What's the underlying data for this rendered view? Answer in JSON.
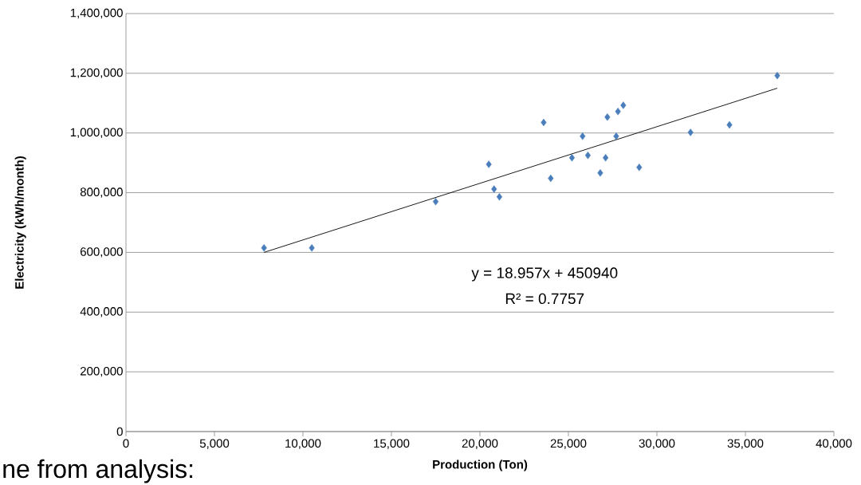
{
  "chart_data": {
    "type": "scatter",
    "xlabel": "Production (Ton)",
    "ylabel": "Electricity (kWh/month)",
    "series": [
      {
        "color": "#4a7ebb",
        "marker": "diamond",
        "x": [
          7800,
          10500,
          17500,
          20500,
          20800,
          21100,
          23600,
          24000,
          25200,
          25800,
          26100,
          26800,
          27200,
          27100,
          27800,
          27700,
          28100,
          29000,
          31900,
          34100,
          36800
        ],
        "values": [
          615000,
          615000,
          770000,
          895000,
          812000,
          786000,
          1035000,
          848000,
          917000,
          989000,
          925000,
          866000,
          1053000,
          917000,
          1072000,
          989000,
          1093000,
          885000,
          1002000,
          1027000,
          1192000
        ]
      },
      {
        "type": "line",
        "color": "#000000",
        "marker": "none",
        "line_style": "solid",
        "x": [
          7800,
          36800
        ],
        "values": [
          600000,
          1150000
        ]
      }
    ],
    "xlim": [
      0,
      40000
    ],
    "ylim": [
      0,
      1400000
    ],
    "xticks": [
      0,
      {
        "value": 5000,
        "label": "5,000"
      },
      {
        "value": 10000,
        "label": "10,000"
      },
      {
        "value": 15000,
        "label": "15,000"
      },
      {
        "value": 20000,
        "label": "20,000"
      },
      {
        "value": 25000,
        "label": "25,000"
      },
      {
        "value": 30000,
        "label": "30,000"
      },
      {
        "value": 35000,
        "label": "35,000"
      },
      {
        "value": 40000,
        "label": "40,000"
      }
    ],
    "yticks": [
      0,
      {
        "value": 200000,
        "label": "200,000"
      },
      {
        "value": 400000,
        "label": "400,000"
      },
      {
        "value": 600000,
        "label": "600,000"
      },
      {
        "value": 800000,
        "label": "800,000"
      },
      {
        "value": 1000000,
        "label": "1,000,000"
      },
      {
        "value": 1200000,
        "label": "1,200,000"
      },
      {
        "value": 1400000,
        "label": "1,400,000"
      }
    ],
    "grid": "y",
    "annotations": [
      "y = 18.957x + 450940",
      "R² = 0.7757",
      "ne from analysis:"
    ]
  }
}
